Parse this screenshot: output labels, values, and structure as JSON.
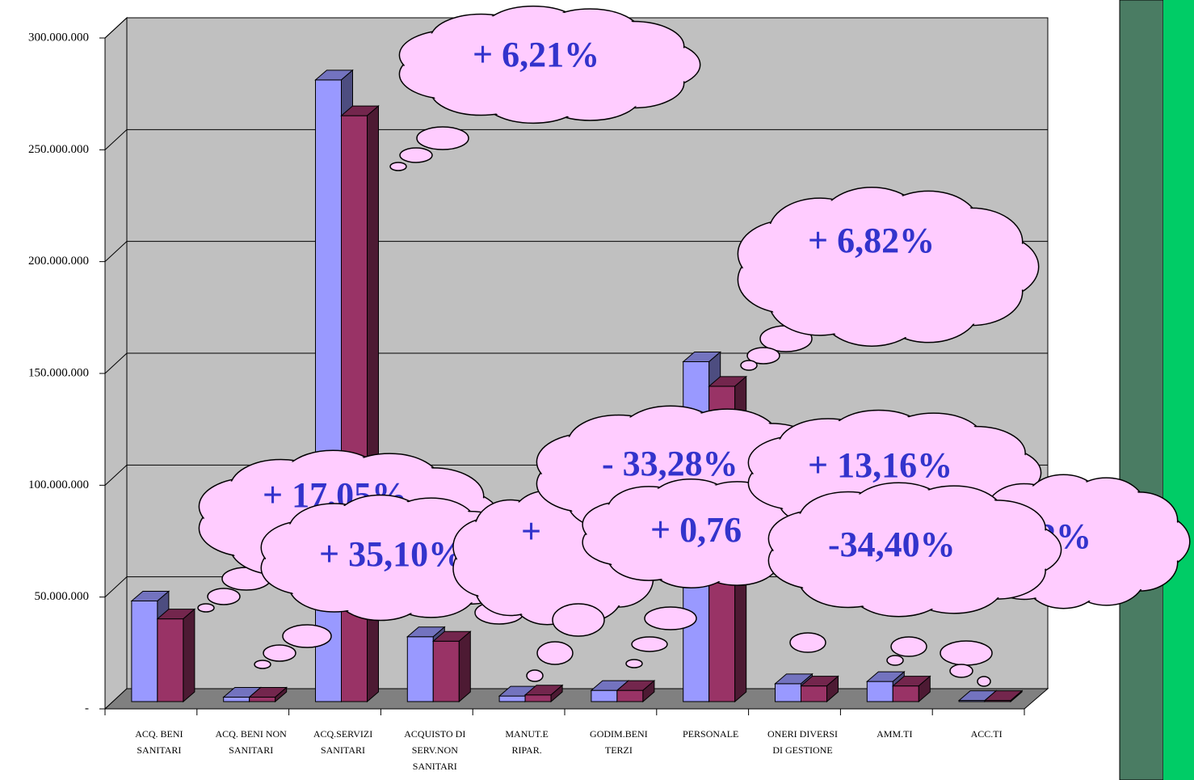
{
  "chart_data": {
    "type": "bar3d",
    "categories": [
      "ACQ. BENI\nSANITARI",
      "ACQ. BENI NON\nSANITARI",
      "ACQ.SERVIZI\nSANITARI",
      "ACQUISTO DI\nSERV.NON\nSANITARI",
      "MANUT.E\nRIPAR.",
      "GODIM.BENI\nTERZI",
      "PERSONALE",
      "ONERI DIVERSI\nDI GESTIONE",
      "AMM.TI",
      "ACC.TI"
    ],
    "series": [
      {
        "color": "#9999ff",
        "values": [
          45000000,
          2000000,
          278000000,
          29000000,
          2500000,
          5000000,
          152000000,
          8000000,
          9000000,
          500000
        ]
      },
      {
        "color": "#993366",
        "values": [
          37000000,
          2000000,
          262000000,
          27000000,
          3000000,
          5000000,
          141000000,
          7000000,
          7000000,
          500000
        ]
      }
    ],
    "ylim": [
      0,
      300000000
    ],
    "yticks": [
      {
        "value": 0,
        "label": "-"
      },
      {
        "value": 50000000,
        "label": "50.000.000"
      },
      {
        "value": 100000000,
        "label": "100.000.000"
      },
      {
        "value": 150000000,
        "label": "150.000.000"
      },
      {
        "value": 200000000,
        "label": "200.000.000"
      },
      {
        "value": 250000000,
        "label": "250.000.000"
      },
      {
        "value": 300000000,
        "label": "300.000.000"
      }
    ],
    "grid": true,
    "annotations": [
      "+ 6,21%",
      "+ 6,82%",
      "+ 17,05%",
      "+ 35,10%",
      "+",
      "- 33,28%",
      "+ 0,76",
      "+ 13,16%",
      "-34,40%",
      "2%"
    ]
  }
}
